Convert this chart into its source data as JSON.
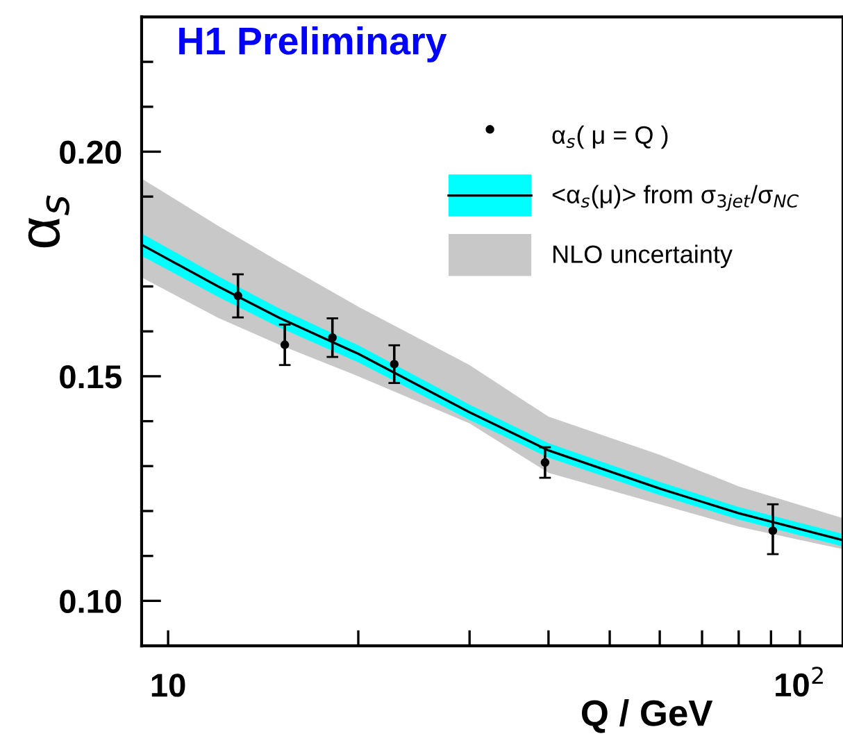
{
  "chart_data": {
    "type": "scatter",
    "title": "H1 Preliminary",
    "xlabel": "Q / GeV",
    "ylabel": "α$_{s}$",
    "log": "x",
    "xlim": [
      9.08,
      117
    ],
    "ylim": [
      0.09,
      0.23
    ],
    "xticks": [
      {
        "value": 10,
        "label": "10"
      },
      {
        "value": 20,
        "label": null
      },
      {
        "value": 30,
        "label": null
      },
      {
        "value": 40,
        "label": null
      },
      {
        "value": 50,
        "label": null
      },
      {
        "value": 60,
        "label": null
      },
      {
        "value": 70,
        "label": null
      },
      {
        "value": 80,
        "label": null
      },
      {
        "value": 90,
        "label": null
      },
      {
        "value": 100,
        "label": "10$^{2}$"
      }
    ],
    "yticks": [
      {
        "value": 0.1,
        "label": "0.10"
      },
      {
        "value": 0.11,
        "label": null
      },
      {
        "value": 0.12,
        "label": null
      },
      {
        "value": 0.13,
        "label": null
      },
      {
        "value": 0.14,
        "label": null
      },
      {
        "value": 0.15,
        "label": "0.15"
      },
      {
        "value": 0.16,
        "label": null
      },
      {
        "value": 0.17,
        "label": null
      },
      {
        "value": 0.18,
        "label": null
      },
      {
        "value": 0.19,
        "label": null
      },
      {
        "value": 0.2,
        "label": "0.20"
      },
      {
        "value": 0.21,
        "label": null
      },
      {
        "value": 0.22,
        "label": null
      }
    ],
    "grid": false,
    "legend": "top right",
    "series": [
      {
        "name": "NLO uncertainty",
        "type": "line",
        "color": "#c8c8c8",
        "x": [
          9.08,
          12,
          15,
          20,
          30,
          40,
          60,
          80,
          117
        ],
        "lower": [
          0.172,
          0.163,
          0.157,
          0.15,
          0.1395,
          0.1285,
          0.1215,
          0.1165,
          0.1115
        ],
        "upper": [
          0.194,
          0.1835,
          0.1755,
          0.1655,
          0.1525,
          0.141,
          0.1325,
          0.1255,
          0.1184
        ],
        "values": [
          null,
          null,
          null,
          null,
          null,
          null,
          null,
          null,
          null
        ]
      },
      {
        "type": "line",
        "color": "#00ffff",
        "x": [
          9.08,
          12,
          15,
          20,
          30,
          40,
          60,
          80,
          117
        ],
        "lower": [
          0.1768,
          0.1677,
          0.1609,
          0.1531,
          0.1403,
          0.1319,
          0.1235,
          0.1181,
          0.1121
        ],
        "upper": [
          0.1818,
          0.1723,
          0.1651,
          0.1569,
          0.1437,
          0.1351,
          0.1265,
          0.1209,
          0.1149
        ],
        "values": [
          null,
          null,
          null,
          null,
          null,
          null,
          null,
          null,
          null
        ]
      },
      {
        "name": "<α$_{s}$(μ)> from σ$_{3jet}$/σ$_{NC}$",
        "type": "line",
        "color": "#000000",
        "marker": "none",
        "x": [
          9.08,
          12,
          15,
          20,
          30,
          40,
          60,
          80,
          117
        ],
        "values": [
          0.1793,
          0.17,
          0.163,
          0.155,
          0.142,
          0.1335,
          0.125,
          0.1195,
          0.1135
        ]
      },
      {
        "name": "α$_{s}$( μ = Q )",
        "color": "#000000",
        "marker": "circle",
        "x": [
          12.9,
          15.3,
          18.2,
          22.8,
          39.5,
          90.6
        ],
        "values": [
          0.1679,
          0.157,
          0.1586,
          0.1527,
          0.1308,
          0.1156
        ],
        "errors": [
          0.0048,
          0.0045,
          0.0043,
          0.0042,
          0.0034,
          [
            0.1104,
            0.1215
          ]
        ]
      }
    ]
  }
}
